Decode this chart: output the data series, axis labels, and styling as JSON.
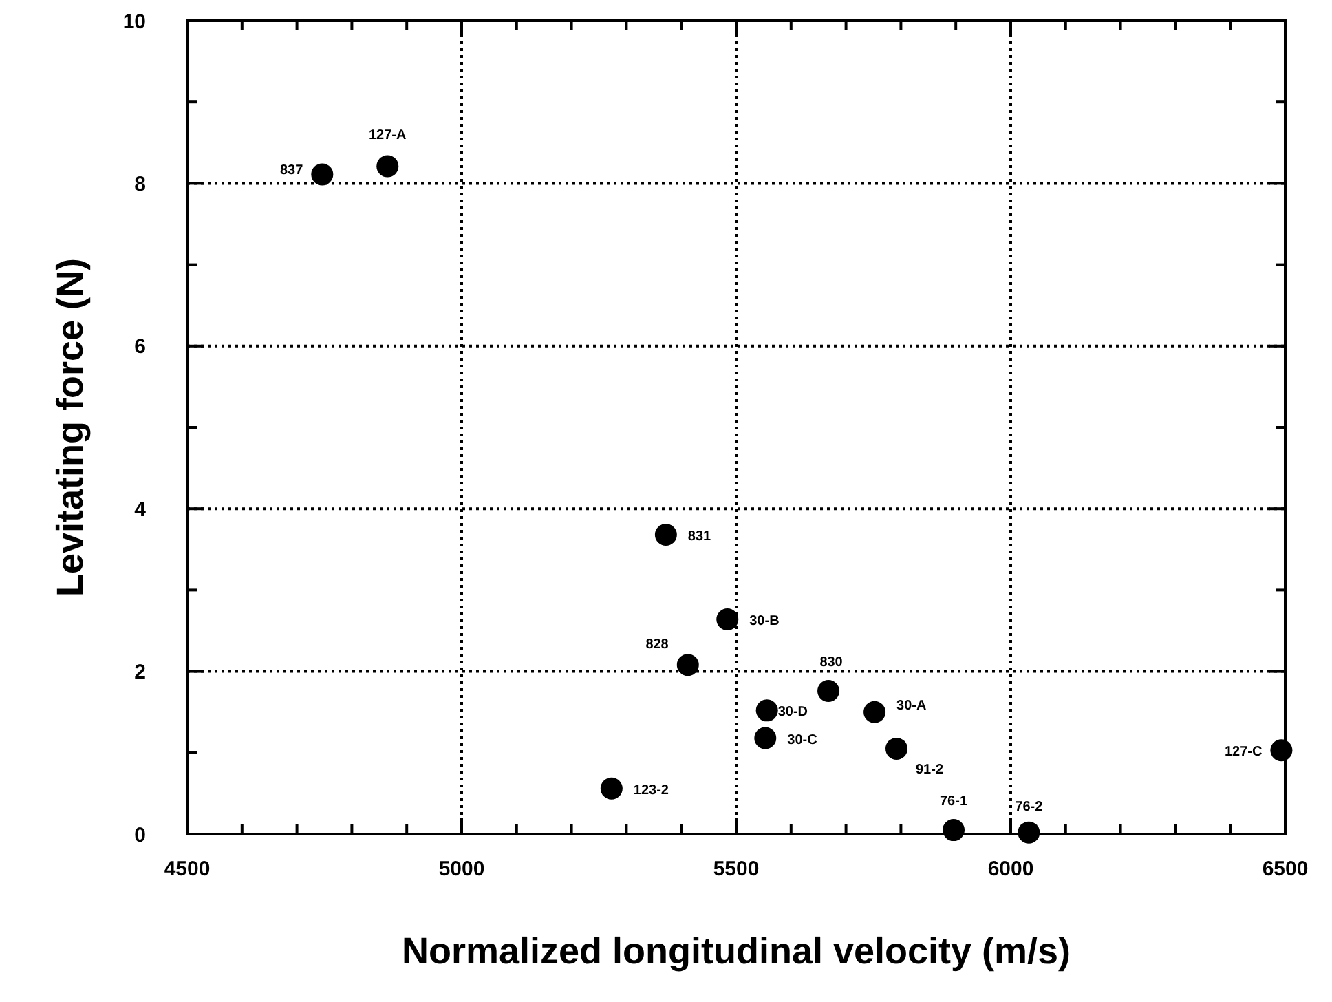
{
  "chart_data": {
    "type": "scatter",
    "xlabel": "Normalized longitudinal velocity (m/s)",
    "ylabel": "Levitating force (N)",
    "x": [
      4746,
      4865,
      5372,
      5484,
      5412,
      5668,
      5556,
      5553,
      5752,
      5792,
      5273,
      5896,
      6033,
      6493
    ],
    "values": [
      8.11,
      8.21,
      3.68,
      2.64,
      2.08,
      1.76,
      1.52,
      1.18,
      1.5,
      1.05,
      0.56,
      0.05,
      0.02,
      1.03
    ],
    "color": "#000000",
    "marker": "circle",
    "xlim": [
      4500,
      6500
    ],
    "ylim": [
      0,
      10
    ],
    "xticks": [
      4500,
      {
        "value": 4600,
        "label": null
      },
      {
        "value": 4700,
        "label": null
      },
      {
        "value": 4800,
        "label": null
      },
      {
        "value": 4900,
        "label": null
      },
      5000,
      {
        "value": 5100,
        "label": null
      },
      {
        "value": 5200,
        "label": null
      },
      {
        "value": 5300,
        "label": null
      },
      {
        "value": 5400,
        "label": null
      },
      5500,
      {
        "value": 5600,
        "label": null
      },
      {
        "value": 5700,
        "label": null
      },
      {
        "value": 5800,
        "label": null
      },
      {
        "value": 5900,
        "label": null
      },
      6000,
      {
        "value": 6100,
        "label": null
      },
      {
        "value": 6200,
        "label": null
      },
      {
        "value": 6300,
        "label": null
      },
      {
        "value": 6400,
        "label": null
      },
      6500
    ],
    "yticks": [
      0,
      {
        "value": 1,
        "label": null
      },
      2,
      {
        "value": 3,
        "label": null
      },
      4,
      {
        "value": 5,
        "label": null
      },
      6,
      {
        "value": 7,
        "label": null
      },
      8,
      {
        "value": 9,
        "label": null
      },
      10
    ],
    "grid": true,
    "annotations": [
      {
        "text": "837",
        "x": 4746,
        "y": 8.11
      },
      {
        "text": "127-A",
        "x": 4865,
        "y": 8.21
      },
      {
        "text": "831",
        "x": 5372,
        "y": 3.68
      },
      {
        "text": "30-B",
        "x": 5484,
        "y": 2.64
      },
      {
        "text": "828",
        "x": 5412,
        "y": 2.08
      },
      {
        "text": "830",
        "x": 5668,
        "y": 1.76
      },
      {
        "text": "30-D",
        "x": 5556,
        "y": 1.52
      },
      {
        "text": "30-C",
        "x": 5553,
        "y": 1.18
      },
      {
        "text": "30-A",
        "x": 5752,
        "y": 1.5
      },
      {
        "text": "91-2",
        "x": 5792,
        "y": 1.05
      },
      {
        "text": "123-2",
        "x": 5273,
        "y": 0.56
      },
      {
        "text": "76-1",
        "x": 5896,
        "y": 0.05
      },
      {
        "text": "76-2",
        "x": 6033,
        "y": 0.02
      },
      {
        "text": "127-C",
        "x": 6493,
        "y": 1.03
      }
    ]
  }
}
